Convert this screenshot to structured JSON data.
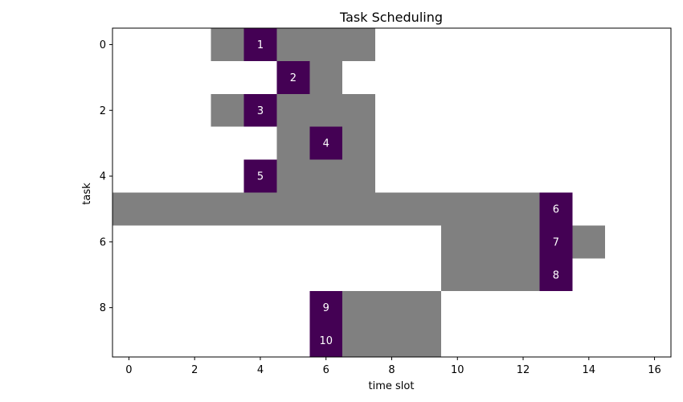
{
  "chart_data": {
    "type": "heatmap",
    "title": "Task Scheduling",
    "xlabel": "time slot",
    "ylabel": "task",
    "xlim": [
      -0.5,
      16.5
    ],
    "ylim": [
      9.5,
      -0.5
    ],
    "xticks": [
      0,
      2,
      4,
      6,
      8,
      10,
      12,
      14,
      16
    ],
    "yticks": [
      0,
      2,
      4,
      6,
      8
    ],
    "colors": {
      "window": "#808080",
      "scheduled": "#440154",
      "background": "#ffffff"
    },
    "tasks": [
      {
        "task": 0,
        "window": [
          3,
          7
        ],
        "scheduled": 4,
        "label": "1"
      },
      {
        "task": 1,
        "window": [
          5,
          6
        ],
        "scheduled": 5,
        "label": "2"
      },
      {
        "task": 2,
        "window": [
          3,
          7
        ],
        "scheduled": 4,
        "label": "3"
      },
      {
        "task": 3,
        "window": [
          5,
          7
        ],
        "scheduled": 6,
        "label": "4"
      },
      {
        "task": 4,
        "window": [
          4,
          7
        ],
        "scheduled": 4,
        "label": "5"
      },
      {
        "task": 5,
        "window": [
          -0.5,
          13
        ],
        "scheduled": 13,
        "label": "6"
      },
      {
        "task": 6,
        "window": [
          10,
          14
        ],
        "scheduled": 13,
        "label": "7"
      },
      {
        "task": 7,
        "window": [
          10,
          13
        ],
        "scheduled": 13,
        "label": "8"
      },
      {
        "task": 8,
        "window": [
          6,
          9
        ],
        "scheduled": 6,
        "label": "9"
      },
      {
        "task": 9,
        "window": [
          6,
          9
        ],
        "scheduled": 6,
        "label": "10"
      }
    ]
  }
}
